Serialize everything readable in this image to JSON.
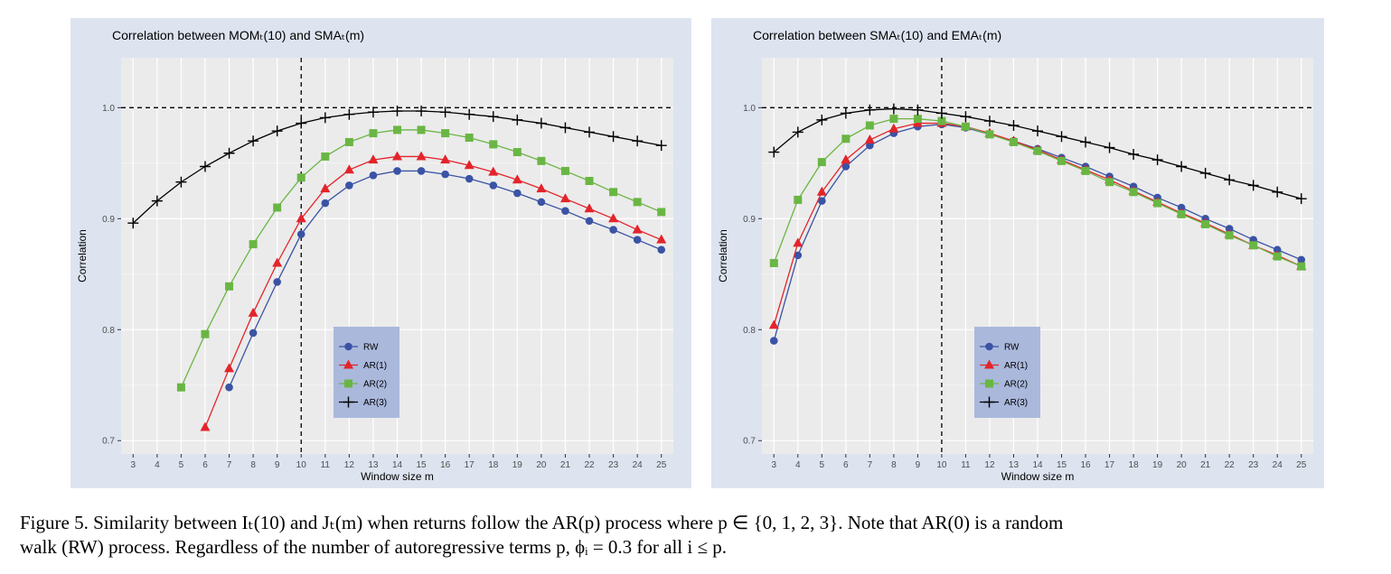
{
  "chart_data": [
    {
      "type": "line",
      "title": "Correlation between MOMₜ(10) and SMAₜ(m)",
      "xlabel": "Window size m",
      "ylabel": "Correlation",
      "x": [
        3,
        4,
        5,
        6,
        7,
        8,
        9,
        10,
        11,
        12,
        13,
        14,
        15,
        16,
        17,
        18,
        19,
        20,
        21,
        22,
        23,
        24,
        25
      ],
      "xlim": [
        2.5,
        25.5
      ],
      "ylim": [
        0.688,
        1.045
      ],
      "yticks": [
        0.7,
        0.8,
        0.9,
        1.0
      ],
      "ytick_labels": [
        "0.7",
        "0.8",
        "0.9",
        "1.0"
      ],
      "hline": 1.0,
      "vline": 10,
      "grid": true,
      "legend_position": "center-bottom",
      "series": [
        {
          "name": "RW",
          "color": "#3a53a4",
          "marker": "circle",
          "values": [
            null,
            null,
            null,
            null,
            0.748,
            0.797,
            0.843,
            0.886,
            0.914,
            0.93,
            0.939,
            0.943,
            0.943,
            0.94,
            0.936,
            0.93,
            0.923,
            0.915,
            0.907,
            0.898,
            0.89,
            0.881,
            0.872
          ]
        },
        {
          "name": "AR(1)",
          "color": "#e3242b",
          "marker": "triangle",
          "values": [
            null,
            null,
            null,
            0.712,
            0.765,
            0.815,
            0.86,
            0.9,
            0.927,
            0.944,
            0.953,
            0.956,
            0.956,
            0.953,
            0.948,
            0.942,
            0.935,
            0.927,
            0.918,
            0.909,
            0.9,
            0.89,
            0.881
          ]
        },
        {
          "name": "AR(2)",
          "color": "#6ab644",
          "marker": "square",
          "values": [
            null,
            null,
            0.748,
            0.796,
            0.839,
            0.877,
            0.91,
            0.937,
            0.956,
            0.969,
            0.977,
            0.98,
            0.98,
            0.977,
            0.973,
            0.967,
            0.96,
            0.952,
            0.943,
            0.934,
            0.924,
            0.915,
            0.906
          ]
        },
        {
          "name": "AR(3)",
          "color": "#000000",
          "marker": "plus",
          "values": [
            0.896,
            0.916,
            0.933,
            0.947,
            0.959,
            0.97,
            0.979,
            0.986,
            0.991,
            0.994,
            0.996,
            0.997,
            0.997,
            0.996,
            0.994,
            0.992,
            0.989,
            0.986,
            0.982,
            0.978,
            0.974,
            0.97,
            0.966
          ]
        }
      ]
    },
    {
      "type": "line",
      "title": "Correlation between SMAₜ(10) and EMAₜ(m)",
      "xlabel": "Window size m",
      "ylabel": "Correlation",
      "x": [
        3,
        4,
        5,
        6,
        7,
        8,
        9,
        10,
        11,
        12,
        13,
        14,
        15,
        16,
        17,
        18,
        19,
        20,
        21,
        22,
        23,
        24,
        25
      ],
      "xlim": [
        2.5,
        25.5
      ],
      "ylim": [
        0.688,
        1.045
      ],
      "yticks": [
        0.7,
        0.8,
        0.9,
        1.0
      ],
      "ytick_labels": [
        "0.7",
        "0.8",
        "0.9",
        "1.0"
      ],
      "hline": 1.0,
      "vline": 10,
      "grid": true,
      "legend_position": "center-bottom",
      "series": [
        {
          "name": "RW",
          "color": "#3a53a4",
          "marker": "circle",
          "values": [
            0.79,
            0.867,
            0.916,
            0.947,
            0.966,
            0.977,
            0.983,
            0.985,
            0.982,
            0.976,
            0.97,
            0.963,
            0.955,
            0.947,
            0.938,
            0.929,
            0.919,
            0.91,
            0.9,
            0.891,
            0.881,
            0.872,
            0.863
          ]
        },
        {
          "name": "AR(1)",
          "color": "#e3242b",
          "marker": "triangle",
          "values": [
            0.804,
            0.878,
            0.924,
            0.953,
            0.971,
            0.981,
            0.986,
            0.986,
            0.983,
            0.977,
            0.97,
            0.962,
            0.953,
            0.944,
            0.935,
            0.925,
            0.915,
            0.905,
            0.896,
            0.886,
            0.876,
            0.867,
            0.857
          ]
        },
        {
          "name": "AR(2)",
          "color": "#6ab644",
          "marker": "square",
          "values": [
            0.86,
            0.917,
            0.951,
            0.972,
            0.984,
            0.99,
            0.99,
            0.988,
            0.983,
            0.976,
            0.969,
            0.961,
            0.952,
            0.943,
            0.933,
            0.924,
            0.914,
            0.904,
            0.895,
            0.885,
            0.876,
            0.866,
            0.857
          ]
        },
        {
          "name": "AR(3)",
          "color": "#000000",
          "marker": "plus",
          "values": [
            0.96,
            0.978,
            0.989,
            0.995,
            0.998,
            0.999,
            0.998,
            0.995,
            0.992,
            0.988,
            0.984,
            0.979,
            0.974,
            0.969,
            0.964,
            0.958,
            0.953,
            0.947,
            0.941,
            0.935,
            0.93,
            0.924,
            0.918
          ]
        }
      ]
    }
  ],
  "caption": {
    "line1": "Figure 5.  Similarity between Iₜ(10) and Jₜ(m) when returns follow the AR(p) process where p ∈ {0, 1, 2, 3}. Note that AR(0) is a random",
    "line2": "walk (RW) process. Regardless of the number of autoregressive terms p, ϕᵢ = 0.3 for all i ≤ p."
  }
}
